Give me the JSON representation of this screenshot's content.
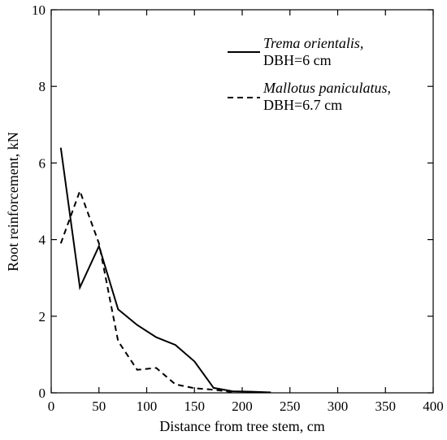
{
  "chart_data": {
    "type": "line",
    "xlabel": "Distance from tree stem, cm",
    "ylabel": "Root reinforcement, kN",
    "xlim": [
      0,
      400
    ],
    "ylim": [
      0,
      10
    ],
    "xticks": [
      0,
      50,
      100,
      150,
      200,
      250,
      300,
      350,
      400
    ],
    "yticks": [
      0,
      2,
      4,
      6,
      8,
      10
    ],
    "grid": false,
    "legend_position": "top-right",
    "series": [
      {
        "name": "Trema orientalis,",
        "name_line2": "DBH=6 cm",
        "line_style": "solid",
        "x": [
          10,
          30,
          50,
          70,
          90,
          110,
          130,
          150,
          170,
          190,
          210,
          230
        ],
        "y": [
          6.4,
          2.75,
          3.83,
          2.18,
          1.77,
          1.45,
          1.25,
          0.82,
          0.13,
          0.04,
          0.03,
          0.01
        ]
      },
      {
        "name": "Mallotus paniculatus,",
        "name_line2": "DBH=6.7 cm",
        "line_style": "dashed",
        "x": [
          10,
          30,
          50,
          70,
          90,
          110,
          130,
          150,
          170,
          190
        ],
        "y": [
          3.9,
          5.27,
          3.9,
          1.35,
          0.6,
          0.65,
          0.22,
          0.12,
          0.08,
          0.02
        ]
      }
    ]
  }
}
